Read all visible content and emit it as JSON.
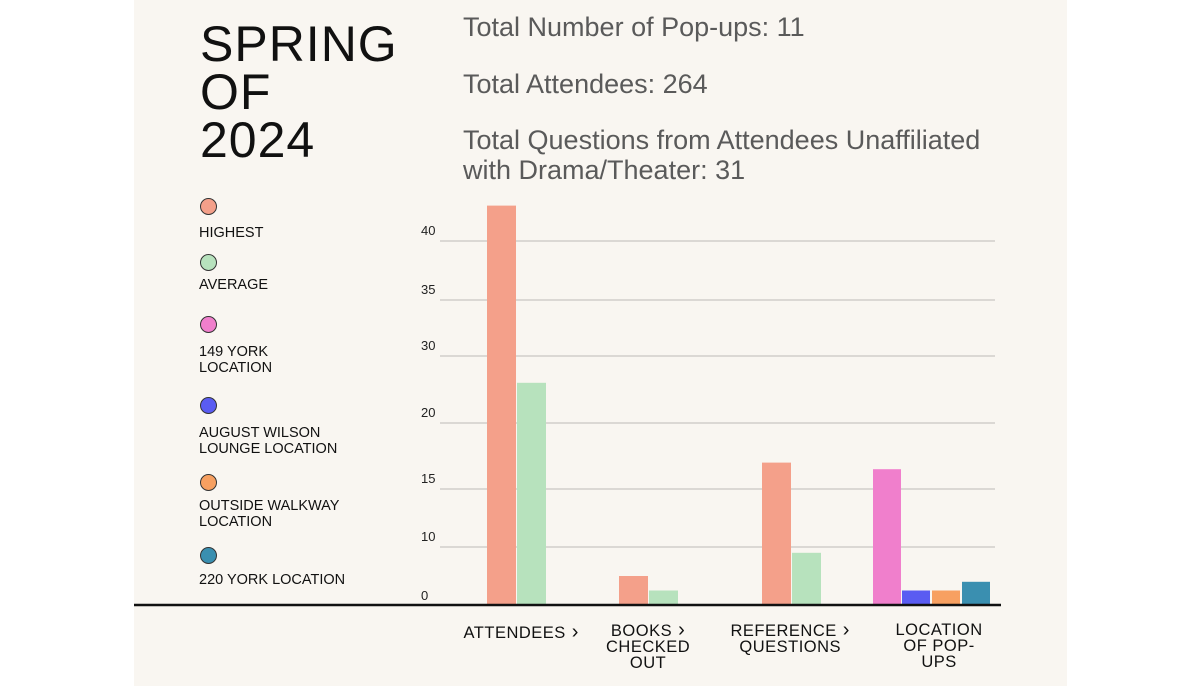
{
  "title_lines": [
    "SPRING",
    "OF",
    "2024"
  ],
  "stats": [
    {
      "text": "Total Number of Pop-ups: 11"
    },
    {
      "text": "Total Attendees: 264"
    },
    {
      "text_lines": [
        "Total Questions from Attendees Unaffiliated",
        "with Drama/Theater: 31"
      ]
    }
  ],
  "legend": [
    {
      "label_lines": [
        "HIGHEST"
      ],
      "color": "#f4a08a"
    },
    {
      "label_lines": [
        "AVERAGE"
      ],
      "color": "#b7e2bd"
    },
    {
      "label_lines": [
        "149 YORK",
        "LOCATION"
      ],
      "color": "#f07fcc"
    },
    {
      "label_lines": [
        "AUGUST WILSON",
        "LOUNGE LOCATION"
      ],
      "color": "#5a5cf2"
    },
    {
      "label_lines": [
        "OUTSIDE WALKWAY",
        "LOCATION"
      ],
      "color": "#f7a061"
    },
    {
      "label_lines": [
        "220 YORK LOCATION"
      ],
      "color": "#3a8fb0"
    }
  ],
  "chart_data": {
    "type": "bar",
    "title": "SPRING OF 2024",
    "xlabel": "",
    "ylabel": "",
    "ytick_labels": [
      "0",
      "10",
      "15",
      "20",
      "30",
      "35",
      "40"
    ],
    "gridlines": true,
    "categories": [
      {
        "label_lines": [
          "ATTENDEES",
          "›"
        ],
        "chevron": true
      },
      {
        "label_lines": [
          "BOOKS",
          "CHECKED",
          "OUT"
        ],
        "chevron": true
      },
      {
        "label_lines": [
          "REFERENCE",
          "QUESTIONS"
        ],
        "chevron": true
      },
      {
        "label_lines": [
          "LOCATION",
          "OF POP-",
          "UPS"
        ],
        "chevron": false
      }
    ],
    "chevron_glyph": "›",
    "bars": [
      {
        "category": "ATTENDEES",
        "series": "HIGHEST",
        "value": 43,
        "color": "#f4a08a"
      },
      {
        "category": "ATTENDEES",
        "series": "AVERAGE",
        "value": 26,
        "color": "#b7e2bd"
      },
      {
        "category": "BOOKS CHECKED OUT",
        "series": "HIGHEST",
        "value": 5,
        "color": "#f4a08a"
      },
      {
        "category": "BOOKS CHECKED OUT",
        "series": "AVERAGE",
        "value": 2.5,
        "color": "#b7e2bd"
      },
      {
        "category": "REFERENCE QUESTIONS",
        "series": "HIGHEST",
        "value": 17,
        "color": "#f4a08a"
      },
      {
        "category": "REFERENCE QUESTIONS",
        "series": "AVERAGE",
        "value": 9,
        "color": "#b7e2bd"
      },
      {
        "category": "LOCATION OF POP-UPS",
        "series": "149 YORK LOCATION",
        "value": 16.5,
        "color": "#f07fcc"
      },
      {
        "category": "LOCATION OF POP-UPS",
        "series": "AUGUST WILSON LOUNGE LOCATION",
        "value": 2.5,
        "color": "#5a5cf2"
      },
      {
        "category": "LOCATION OF POP-UPS",
        "series": "OUTSIDE WALKWAY LOCATION",
        "value": 2.5,
        "color": "#f7a061"
      },
      {
        "category": "LOCATION OF POP-UPS",
        "series": "220 YORK LOCATION",
        "value": 4,
        "color": "#3a8fb0"
      }
    ]
  }
}
